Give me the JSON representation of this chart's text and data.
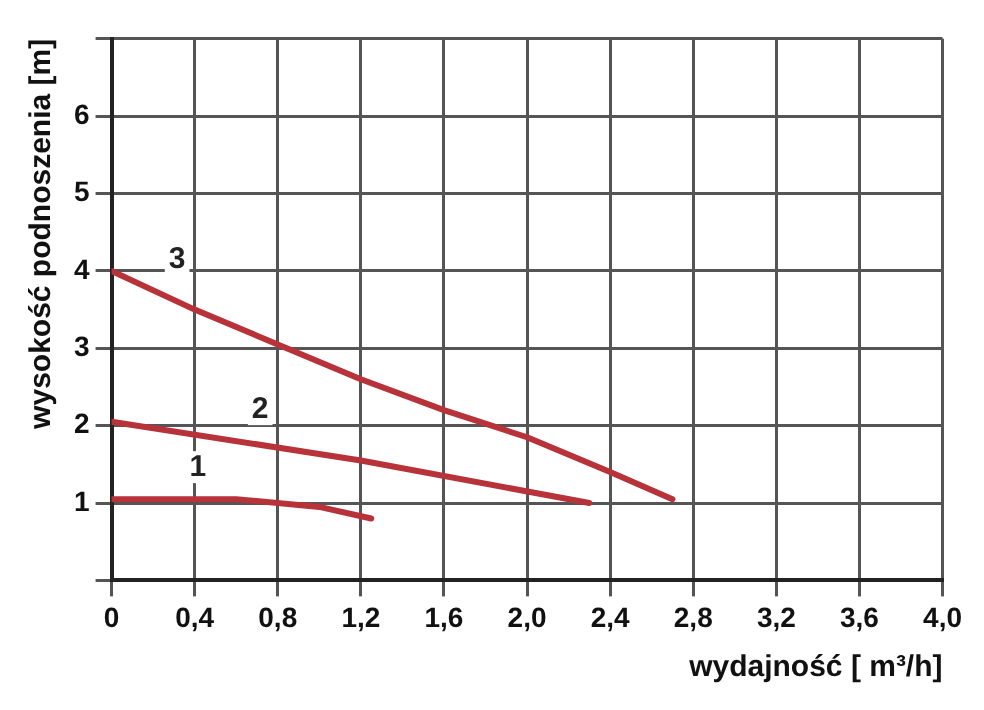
{
  "chart_data": {
    "type": "line",
    "xlabel": "wydajność [ m³/h]",
    "ylabel": "wysokość podnoszenia [m]",
    "xlim": [
      0,
      4.0
    ],
    "xticks": [
      0,
      {
        "value": 0.4,
        "label": "0,4"
      },
      {
        "value": 0.8,
        "label": "0,8"
      },
      {
        "value": 1.2,
        "label": "1,2"
      },
      {
        "value": 1.6,
        "label": "1,6"
      },
      {
        "value": 2.0,
        "label": "2,0"
      },
      {
        "value": 2.4,
        "label": "2,4"
      },
      {
        "value": 2.8,
        "label": "2,8"
      },
      {
        "value": 3.2,
        "label": "3,2"
      },
      {
        "value": 3.6,
        "label": "3,6"
      },
      {
        "value": 4.0,
        "label": "4,0"
      }
    ],
    "ylim": [
      0,
      7
    ],
    "yticks": [
      {
        "value": 0,
        "label": null
      },
      1,
      2,
      3,
      4,
      5,
      6,
      {
        "value": 7,
        "label": null
      }
    ],
    "grid": true,
    "marker": "none",
    "line_style": "solid",
    "series": [
      {
        "name": "1",
        "color": "#b8323a",
        "x": [
          0,
          0.6,
          1.0,
          1.25
        ],
        "values": [
          1.05,
          1.05,
          0.95,
          0.8
        ]
      },
      {
        "name": "2",
        "color": "#b8323a",
        "x": [
          0,
          1.2,
          2.3
        ],
        "values": [
          2.05,
          1.55,
          1.0
        ]
      },
      {
        "name": "3",
        "color": "#b8323a",
        "x": [
          0,
          0.4,
          0.8,
          1.2,
          1.6,
          2.0,
          2.4,
          2.7
        ],
        "values": [
          4.0,
          3.5,
          3.05,
          2.6,
          2.2,
          1.85,
          1.4,
          1.05
        ]
      }
    ]
  }
}
